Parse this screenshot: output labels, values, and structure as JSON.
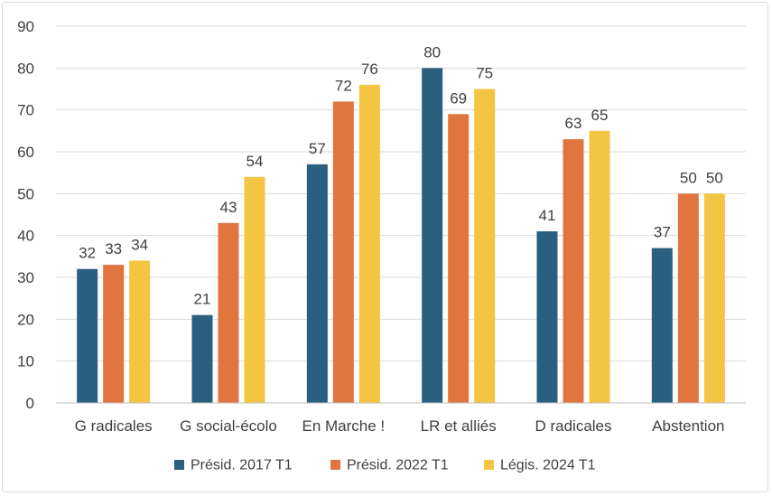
{
  "chart_data": {
    "type": "bar",
    "title": "",
    "xlabel": "",
    "ylabel": "",
    "categories": [
      "G radicales",
      "G social-écolo",
      "En Marche !",
      "LR et alliés",
      "D radicales",
      "Abstention"
    ],
    "series": [
      {
        "name": "Présid. 2017 T1",
        "color": "#2a5f80",
        "values": [
          32,
          21,
          57,
          80,
          41,
          37
        ]
      },
      {
        "name": "Présid. 2022 T1",
        "color": "#e07540",
        "values": [
          33,
          43,
          72,
          69,
          63,
          50
        ]
      },
      {
        "name": "Légis. 2024 T1",
        "color": "#f4c543",
        "values": [
          34,
          54,
          76,
          75,
          65,
          50
        ]
      }
    ],
    "ylim": [
      0,
      90
    ],
    "yticks": [
      0,
      10,
      20,
      30,
      40,
      50,
      60,
      70,
      80,
      90
    ],
    "grid": true,
    "legend_position": "bottom",
    "data_labels": true
  }
}
